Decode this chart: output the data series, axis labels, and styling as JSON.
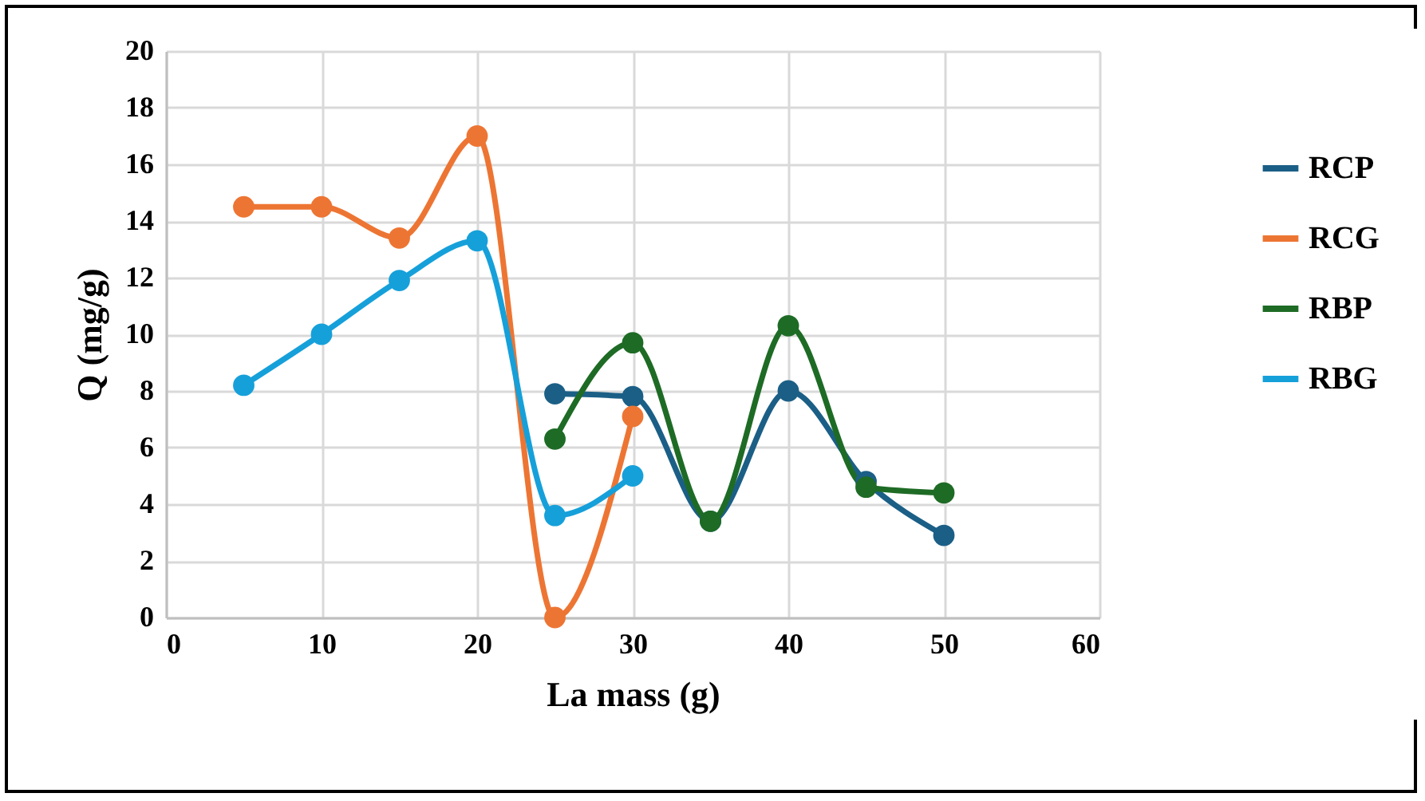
{
  "chart_data": {
    "type": "line",
    "xlabel": "La mass (g)",
    "ylabel": "Q (mg/g)",
    "xlim": [
      0,
      60
    ],
    "xticks": [
      0,
      10,
      20,
      30,
      40,
      50,
      60
    ],
    "ylim": [
      0,
      20
    ],
    "yticks": [
      0,
      2,
      4,
      6,
      8,
      10,
      12,
      14,
      16,
      18,
      20
    ],
    "grid": true,
    "legend": "right",
    "marker": "circle",
    "line_style": "solid",
    "series": [
      {
        "name": "RCP",
        "color": "#1b5f86",
        "x": [
          25,
          30,
          35,
          40,
          45,
          50
        ],
        "values": [
          7.9,
          7.8,
          3.4,
          8.0,
          4.8,
          2.9
        ]
      },
      {
        "name": "RCG",
        "color": "#ed7533",
        "x": [
          5,
          10,
          15,
          20,
          25,
          30
        ],
        "values": [
          14.5,
          14.5,
          13.4,
          17.0,
          0,
          7.1
        ]
      },
      {
        "name": "RBP",
        "color": "#1e6b25",
        "x": [
          25,
          30,
          35,
          40,
          45,
          50
        ],
        "values": [
          6.3,
          9.7,
          3.4,
          10.3,
          4.6,
          4.4
        ]
      },
      {
        "name": "RBG",
        "color": "#16a0da",
        "x": [
          5,
          10,
          15,
          20,
          25,
          30
        ],
        "values": [
          8.2,
          10.0,
          11.9,
          13.3,
          3.6,
          5.0
        ]
      }
    ]
  }
}
